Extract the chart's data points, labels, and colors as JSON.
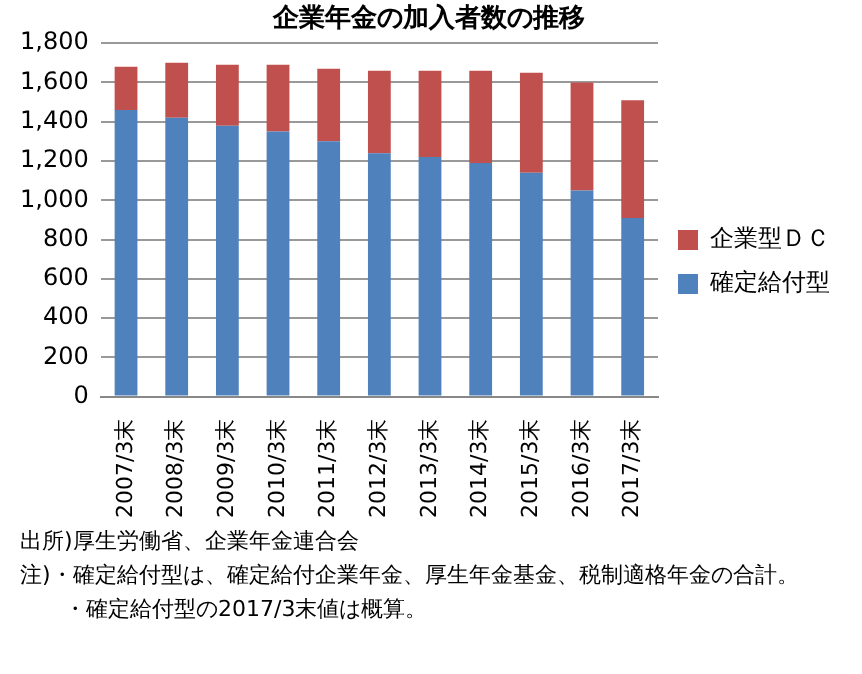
{
  "chart_data": {
    "type": "bar",
    "title": "企業年金の加入者数の推移",
    "categories": [
      "2007/3末",
      "2008/3末",
      "2009/3末",
      "2010/3末",
      "2011/3末",
      "2012/3末",
      "2013/3末",
      "2014/3末",
      "2015/3末",
      "2016/3末",
      "2017/3末"
    ],
    "series": [
      {
        "name": "確定給付型",
        "color": "#4f81bd",
        "values": [
          1460,
          1420,
          1380,
          1350,
          1300,
          1240,
          1220,
          1190,
          1140,
          1050,
          910
        ]
      },
      {
        "name": "企業型ＤＣ",
        "color": "#c0504d",
        "values": [
          220,
          280,
          310,
          340,
          370,
          420,
          440,
          470,
          510,
          550,
          600
        ]
      }
    ],
    "stacked": true,
    "ylim": [
      0,
      1800
    ],
    "yticks": [
      0,
      200,
      400,
      600,
      800,
      {
        "value": 1000,
        "label": "1,000"
      },
      {
        "value": 1200,
        "label": "1,200"
      },
      {
        "value": 1400,
        "label": "1,400"
      },
      {
        "value": 1600,
        "label": "1,600"
      },
      {
        "value": 1800,
        "label": "1,800"
      }
    ],
    "grid": "y",
    "legend": "right",
    "annotations": [
      "出所)厚生労働省、企業年金連合会",
      "注)・確定給付型は、確定給付企業年金、厚生年金基金、税制適格年金の合計。",
      "・確定給付型の2017/3末値は概算。"
    ]
  }
}
